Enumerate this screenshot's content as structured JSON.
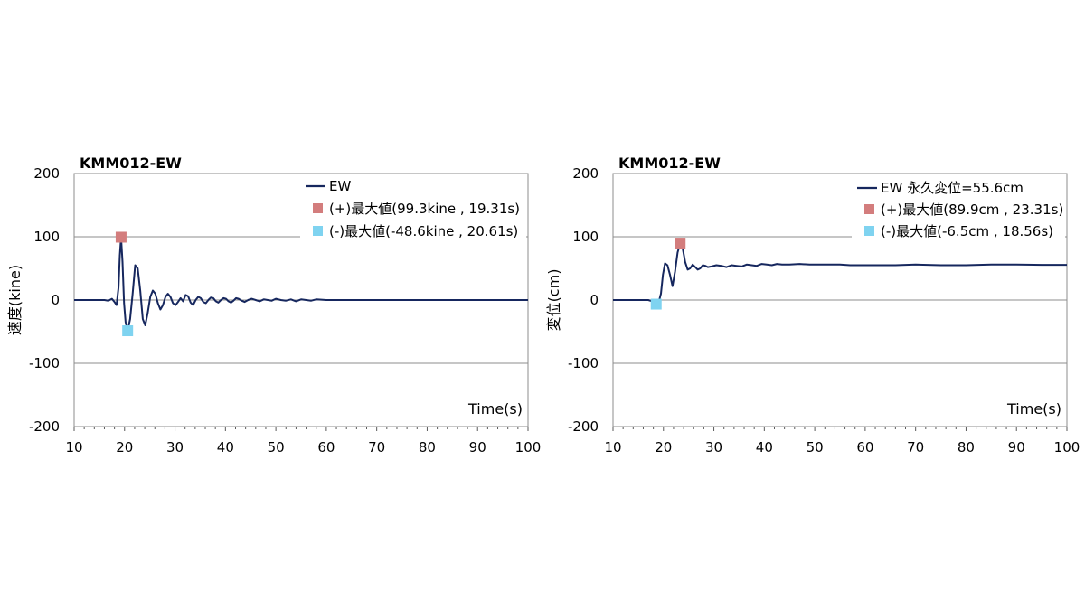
{
  "chart_data": [
    {
      "type": "line",
      "title": "KMM012-EW",
      "xlabel": "Time(s)",
      "ylabel": "速度(kine)",
      "xlim": [
        10,
        100
      ],
      "ylim": [
        -200,
        200
      ],
      "xticks": [
        10,
        20,
        30,
        40,
        50,
        60,
        70,
        80,
        90,
        100
      ],
      "yticks": [
        200,
        100,
        0,
        -100,
        -200
      ],
      "grid": true,
      "legend": "top-right",
      "series": [
        {
          "name": "EW",
          "color": "#16275e",
          "x": [
            10,
            16,
            16.8,
            17.5,
            18,
            18.4,
            18.8,
            19.05,
            19.31,
            19.6,
            19.9,
            20.2,
            20.61,
            21.1,
            21.6,
            22.1,
            22.6,
            23.1,
            23.6,
            24.1,
            24.6,
            25.1,
            25.6,
            26.1,
            26.6,
            27.1,
            27.6,
            28.1,
            28.6,
            29.1,
            29.6,
            30.1,
            30.6,
            31.1,
            31.6,
            32.1,
            32.6,
            33.1,
            33.6,
            34.1,
            34.6,
            35.1,
            35.6,
            36.1,
            36.6,
            37.1,
            37.6,
            38.1,
            38.6,
            39.1,
            39.6,
            40.1,
            40.6,
            41.1,
            41.6,
            42.1,
            42.6,
            43.2,
            43.8,
            44.5,
            45.2,
            46,
            46.8,
            47.6,
            48.4,
            49.2,
            50,
            51,
            52,
            53,
            54,
            55,
            56,
            57,
            58,
            60,
            62,
            64,
            66,
            68,
            70,
            75,
            80,
            85,
            90,
            95,
            100
          ],
          "y": [
            0,
            0,
            -1,
            2,
            -3,
            -8,
            20,
            70,
            99.3,
            60,
            -5,
            -35,
            -48.6,
            -30,
            10,
            55,
            50,
            15,
            -30,
            -40,
            -20,
            5,
            15,
            10,
            -5,
            -15,
            -8,
            5,
            10,
            5,
            -5,
            -8,
            -3,
            3,
            -2,
            8,
            6,
            -4,
            -8,
            0,
            5,
            3,
            -3,
            -5,
            0,
            4,
            3,
            -2,
            -4,
            0,
            3,
            2,
            -2,
            -4,
            -1,
            3,
            2,
            -1,
            -3,
            0,
            2,
            0,
            -2,
            1,
            0,
            -1,
            2,
            0,
            -1,
            1,
            -2,
            1,
            0,
            -1,
            1,
            0,
            0,
            0,
            0,
            0,
            0,
            0,
            0,
            0,
            0,
            0,
            0
          ]
        },
        {
          "name": "(+)最大値(99.3kine , 19.31s)",
          "color": "#d37d7d",
          "marker": "square",
          "x": [
            19.31
          ],
          "y": [
            99.3
          ]
        },
        {
          "name": "(-)最大値(-48.6kine , 20.61s)",
          "color": "#7fd3f0",
          "marker": "square",
          "x": [
            20.61
          ],
          "y": [
            -48.6
          ]
        }
      ]
    },
    {
      "type": "line",
      "title": "KMM012-EW",
      "xlabel": "Time(s)",
      "ylabel": "変位(cm)",
      "xlim": [
        10,
        100
      ],
      "ylim": [
        -200,
        200
      ],
      "xticks": [
        10,
        20,
        30,
        40,
        50,
        60,
        70,
        80,
        90,
        100
      ],
      "yticks": [
        200,
        100,
        0,
        -100,
        -200
      ],
      "grid": true,
      "legend": "top-right",
      "series": [
        {
          "name": "EW 永久変位=55.6cm",
          "color": "#16275e",
          "x": [
            10,
            17,
            17.8,
            18.56,
            19.1,
            19.5,
            19.9,
            20.3,
            20.8,
            21.3,
            21.8,
            22.3,
            22.8,
            23.31,
            23.8,
            24.3,
            24.8,
            25.3,
            25.8,
            26.3,
            26.8,
            27.3,
            27.8,
            28.3,
            28.8,
            29.5,
            30.5,
            31.5,
            32.5,
            33.5,
            34.5,
            35.5,
            36.5,
            37.5,
            38.5,
            39.5,
            40.5,
            41.5,
            42.5,
            43.5,
            45,
            47,
            49,
            51,
            53,
            55,
            57,
            60,
            63,
            66,
            70,
            75,
            80,
            85,
            90,
            95,
            100
          ],
          "y": [
            0,
            0,
            -2,
            -6.5,
            -2,
            10,
            40,
            58,
            55,
            40,
            22,
            45,
            75,
            89.9,
            82,
            60,
            48,
            50,
            56,
            52,
            48,
            50,
            55,
            54,
            52,
            53,
            55,
            54,
            52,
            55,
            54,
            53,
            56,
            55,
            54,
            57,
            56,
            55,
            57,
            56,
            56,
            57,
            56,
            56,
            56,
            56,
            55,
            55,
            55,
            55,
            56,
            55,
            55,
            56,
            56,
            55.6,
            55.6
          ]
        },
        {
          "name": "(+)最大値(89.9cm , 23.31s)",
          "color": "#d37d7d",
          "marker": "square",
          "x": [
            23.31
          ],
          "y": [
            89.9
          ]
        },
        {
          "name": "(-)最大値(-6.5cm , 18.56s)",
          "color": "#7fd3f0",
          "marker": "square",
          "x": [
            18.56
          ],
          "y": [
            -6.5
          ]
        }
      ]
    }
  ]
}
